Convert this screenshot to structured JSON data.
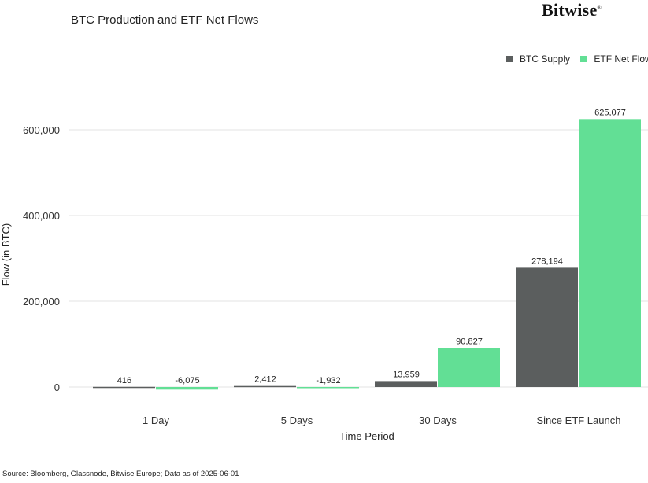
{
  "brand": {
    "name": "Bitwise",
    "mark": "®"
  },
  "chart_data": {
    "type": "bar",
    "title": "BTC Production and ETF Net Flows",
    "xlabel": "Time Period",
    "ylabel": "Flow (in BTC)",
    "categories": [
      "1 Day",
      "5 Days",
      "30 Days",
      "Since ETF Launch"
    ],
    "series": [
      {
        "name": "BTC Supply",
        "color": "#5b5e5e",
        "values": [
          416,
          2412,
          13959,
          278194
        ],
        "labels": [
          "416",
          "2,412",
          "13,959",
          "278,194"
        ]
      },
      {
        "name": "ETF Net Flow",
        "color": "#62df95",
        "values": [
          -6075,
          -1932,
          90827,
          625077
        ],
        "labels": [
          "-6,075",
          "-1,932",
          "90,827",
          "625,077"
        ]
      }
    ],
    "yticks": [
      0,
      200000,
      400000,
      600000
    ],
    "ytick_labels": [
      "0",
      "200,000",
      "400,000",
      "600,000"
    ],
    "ylim": [
      -10000,
      650000
    ],
    "grid": true,
    "legend_position": "top-right"
  },
  "footer": {
    "source": "Source: Bloomberg, Glassnode, Bitwise Europe; Data as of 2025-06-01"
  }
}
